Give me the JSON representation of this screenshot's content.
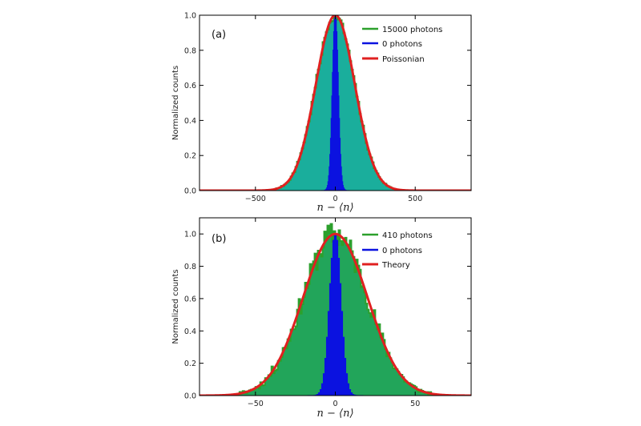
{
  "colors": {
    "green_line": "#2ca02c",
    "fill_a": "#1aae9c",
    "fill_b": "#22a55a",
    "blue": "#0b12e0",
    "red": "#e02020",
    "axes": "#000000"
  },
  "chart_data": [
    {
      "type": "histogram",
      "panel_label": "(a)",
      "xlabel": "n − ⟨n⟩",
      "ylabel": "Normalized counts",
      "xlim": [
        -850,
        850
      ],
      "ylim": [
        0,
        1.0
      ],
      "xticks": [
        -500,
        0,
        500
      ],
      "xtick_labels": [
        "−500",
        "0",
        "500"
      ],
      "yticks": [
        0.0,
        0.2,
        0.4,
        0.6,
        0.8,
        1.0
      ],
      "ytick_labels": [
        "0.0",
        "0.2",
        "0.4",
        "0.6",
        "0.8",
        "1.0"
      ],
      "legend_position": "top-right",
      "series": [
        {
          "name": "15000 photons",
          "kind": "histogram",
          "color": "green",
          "fill": "teal",
          "center": 0,
          "sigma": 122,
          "bin_width": 10,
          "noise": 0.025,
          "seed": 7
        },
        {
          "name": "0 photons",
          "kind": "histogram",
          "color": "blue",
          "center": 0,
          "sigma": 18,
          "bin_width": 4,
          "noise": 0.0,
          "seed": 3
        },
        {
          "name": "Poissonian",
          "kind": "curve",
          "color": "red",
          "center": 0,
          "sigma": 122
        }
      ]
    },
    {
      "type": "histogram",
      "panel_label": "(b)",
      "xlabel": "n − ⟨n⟩",
      "ylabel": "Normalized counts",
      "xlim": [
        -85,
        85
      ],
      "ylim": [
        0,
        1.1
      ],
      "xticks": [
        -50,
        0,
        50
      ],
      "xtick_labels": [
        "−50",
        "0",
        "50"
      ],
      "yticks": [
        0.0,
        0.2,
        0.4,
        0.6,
        0.8,
        1.0
      ],
      "ytick_labels": [
        "0.0",
        "0.2",
        "0.4",
        "0.6",
        "0.8",
        "1.0"
      ],
      "legend_position": "top-right",
      "series": [
        {
          "name": "410 photons",
          "kind": "histogram",
          "color": "green",
          "fill": "green",
          "center": 0,
          "sigma": 20.2,
          "bin_width": 1,
          "noise": 0.085,
          "seed": 11
        },
        {
          "name": "0 photons",
          "kind": "histogram",
          "color": "blue",
          "center": 0,
          "sigma": 3.5,
          "bin_width": 1,
          "noise": 0.0,
          "seed": 5
        },
        {
          "name": "Theory",
          "kind": "curve",
          "color": "red",
          "center": 0,
          "sigma": 20.2
        }
      ]
    }
  ]
}
